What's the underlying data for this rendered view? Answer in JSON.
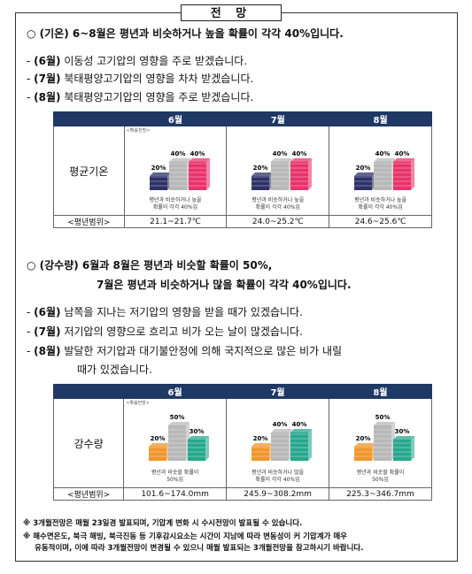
{
  "title": "전 망",
  "temperature": {
    "heading": "○ (기온) 6~8월은 평년과 비슷하거나 높을 확률이 각각 40%입니다.",
    "bullets": [
      {
        "month": "(6월)",
        "text": " 이동성 고기압의 영향을 주로 받겠습니다."
      },
      {
        "month": "(7월)",
        "text": " 북태평양고기압의 영향을 차차 받겠습니다."
      },
      {
        "month": "(8월)",
        "text": " 북태평양고기압의 영향을 주로 받겠습니다."
      }
    ],
    "table": {
      "row_label": "평균기온",
      "range_label": "<평년범위>",
      "prob_tag": "<확률전망>",
      "months": [
        {
          "name": "6월",
          "probs": [
            "20%",
            "40%",
            "40%"
          ],
          "caption1": "평년과 비슷하거나 높을",
          "caption2": "확률이 각각 40%임",
          "range": "21.1~21.7℃"
        },
        {
          "name": "7월",
          "probs": [
            "20%",
            "40%",
            "40%"
          ],
          "caption1": "평년과 비슷하거나 높을",
          "caption2": "확률이 각각 40%임",
          "range": "24.0~25.2℃"
        },
        {
          "name": "8월",
          "probs": [
            "20%",
            "40%",
            "40%"
          ],
          "caption1": "평년과 비슷하거나 높을",
          "caption2": "확률이 각각 40%임",
          "range": "24.6~25.6℃"
        }
      ]
    },
    "colors": {
      "below": "#2e3166",
      "normal": "#b8b8b8",
      "above": "#e8336b"
    }
  },
  "precipitation": {
    "heading_line1": "○ (강수량) 6월과 8월은 평년과 비슷할 확률이 50%,",
    "heading_line2": "7월은 평년과 비슷하거나 많을 확률이 각각 40%입니다.",
    "bullets": [
      {
        "month": "(6월)",
        "text": " 남쪽을 지나는 저기압의 영향을 받을 때가 있겠습니다."
      },
      {
        "month": "(7월)",
        "text": " 저기압의 영향으로 흐리고 비가 오는 날이 많겠습니다."
      },
      {
        "month": "(8월)",
        "text": " 발달한 저기압과 대기불안정에 의해 국지적으로 많은 비가 내릴"
      }
    ],
    "bullet_continuation": "때가 있겠습니다.",
    "table": {
      "row_label": "강수량",
      "range_label": "<평년범위>",
      "prob_tag": "<확률전망>",
      "months": [
        {
          "name": "6월",
          "probs": [
            "20%",
            "50%",
            "30%"
          ],
          "caption1": "평년과 비슷할 확률이",
          "caption2": "50%임",
          "range": "101.6~174.0mm"
        },
        {
          "name": "7월",
          "probs": [
            "20%",
            "40%",
            "40%"
          ],
          "caption1": "평년과 비슷하거나 많을",
          "caption2": "확률이 각각 40%임",
          "range": "245.9~308.2mm"
        },
        {
          "name": "8월",
          "probs": [
            "20%",
            "50%",
            "30%"
          ],
          "caption1": "평년과 비슷할 확률이",
          "caption2": "50%임",
          "range": "225.3~346.7mm"
        }
      ]
    },
    "colors": {
      "below": "#f0962c",
      "normal": "#b8b8b8",
      "above": "#27a88d"
    }
  },
  "notes": [
    "※ 3개월전망은 매월 23일경 발표되며, 기압계 변화 시 수시전망이 발표될 수 있습니다.",
    "※ 해수면온도, 북극 해빙, 북극진동 등 기후감시요소는 시간이 지남에 따라 변동성이 커 기압계가 매우",
    "유동적이며, 이에 따라 3개월전망이 변경될 수 있으니 매월 발표되는 3개월전망을 참고하시기 바랍니다."
  ]
}
